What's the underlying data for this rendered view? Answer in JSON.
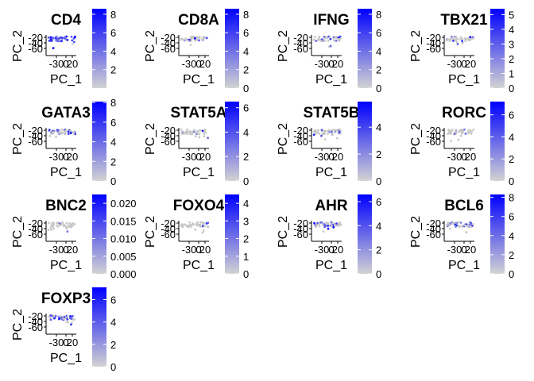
{
  "figure": {
    "low_color": "#d3d3d3",
    "high_color": "#0000ff",
    "point_grey": "#c8c8c8"
  },
  "chart_data": [
    {
      "type": "scatter",
      "title": "CD4",
      "xlabel": "PC_1",
      "ylabel": "PC_2",
      "x_ticks": [
        "-30",
        "0",
        "20"
      ],
      "y_ticks": [
        "-20",
        "-40",
        "-60"
      ],
      "legend_ticks": [
        "2",
        "4",
        "6",
        "8"
      ],
      "legend_range": [
        0,
        8.6
      ],
      "expression_level": 0.85
    },
    {
      "type": "scatter",
      "title": "CD8A",
      "xlabel": "PC_1",
      "ylabel": "PC_2",
      "x_ticks": [
        "-30",
        "0",
        "20"
      ],
      "y_ticks": [
        "-20",
        "-40",
        "-60"
      ],
      "legend_ticks": [
        "0",
        "2",
        "4",
        "6",
        "8"
      ],
      "legend_range": [
        0,
        8.6
      ],
      "expression_level": 0.15
    },
    {
      "type": "scatter",
      "title": "IFNG",
      "xlabel": "PC_1",
      "ylabel": "PC_2",
      "x_ticks": [
        "-30",
        "0",
        "20"
      ],
      "y_ticks": [
        "-20",
        "-40",
        "-60"
      ],
      "legend_ticks": [
        "0",
        "2",
        "4",
        "6",
        "8"
      ],
      "legend_range": [
        0,
        8.6
      ],
      "expression_level": 0.25
    },
    {
      "type": "scatter",
      "title": "TBX21",
      "xlabel": "PC_1",
      "ylabel": "PC_2",
      "x_ticks": [
        "-30",
        "0",
        "20"
      ],
      "y_ticks": [
        "-20",
        "-40",
        "-60"
      ],
      "legend_ticks": [
        "0",
        "1",
        "2",
        "3",
        "4",
        "5"
      ],
      "legend_range": [
        0,
        5.4
      ],
      "expression_level": 0.1
    },
    {
      "type": "scatter",
      "title": "GATA3",
      "xlabel": "PC_1",
      "ylabel": "PC_2",
      "x_ticks": [
        "-30",
        "0",
        "20"
      ],
      "y_ticks": [
        "-20",
        "-40",
        "-60"
      ],
      "legend_ticks": [
        "0",
        "2",
        "4",
        "6",
        "8"
      ],
      "legend_range": [
        0,
        8.1
      ],
      "expression_level": 0.5
    },
    {
      "type": "scatter",
      "title": "STAT5A",
      "xlabel": "PC_1",
      "ylabel": "PC_2",
      "x_ticks": [
        "-30",
        "0",
        "20"
      ],
      "y_ticks": [
        "-20",
        "-40",
        "-60"
      ],
      "legend_ticks": [
        "0",
        "2",
        "4",
        "6"
      ],
      "legend_range": [
        0,
        6.5
      ],
      "expression_level": 0.15
    },
    {
      "type": "scatter",
      "title": "STAT5B",
      "xlabel": "PC_1",
      "ylabel": "PC_2",
      "x_ticks": [
        "-30",
        "0",
        "20"
      ],
      "y_ticks": [
        "-20",
        "-40",
        "-60"
      ],
      "legend_ticks": [
        "0",
        "2",
        "4"
      ],
      "legend_range": [
        0,
        5.9
      ],
      "expression_level": 0.2
    },
    {
      "type": "scatter",
      "title": "RORC",
      "xlabel": "PC_1",
      "ylabel": "PC_2",
      "x_ticks": [
        "-30",
        "0",
        "20"
      ],
      "y_ticks": [
        "-20",
        "-40",
        "-60"
      ],
      "legend_ticks": [
        "0",
        "2",
        "4",
        "6"
      ],
      "legend_range": [
        0,
        7.2
      ],
      "expression_level": 0.1
    },
    {
      "type": "scatter",
      "title": "BNC2",
      "xlabel": "PC_1",
      "ylabel": "PC_2",
      "x_ticks": [
        "-30",
        "0",
        "20"
      ],
      "y_ticks": [
        "-20",
        "-40",
        "-60"
      ],
      "legend_ticks": [
        "0.000",
        "0.005",
        "0.010",
        "0.015",
        "0.020"
      ],
      "legend_range": [
        0,
        0.0225
      ],
      "expression_level": 0.05
    },
    {
      "type": "scatter",
      "title": "FOXO4",
      "xlabel": "PC_1",
      "ylabel": "PC_2",
      "x_ticks": [
        "-30",
        "0",
        "20"
      ],
      "y_ticks": [
        "-20",
        "-40",
        "-60"
      ],
      "legend_ticks": [
        "0",
        "1",
        "2",
        "3",
        "4"
      ],
      "legend_range": [
        0,
        4.5
      ],
      "expression_level": 0.1
    },
    {
      "type": "scatter",
      "title": "AHR",
      "xlabel": "PC_1",
      "ylabel": "PC_2",
      "x_ticks": [
        "-30",
        "0",
        "20"
      ],
      "y_ticks": [
        "-20",
        "-40",
        "-60"
      ],
      "legend_ticks": [
        "0",
        "2",
        "4",
        "6"
      ],
      "legend_range": [
        0,
        6.6
      ],
      "expression_level": 0.35
    },
    {
      "type": "scatter",
      "title": "BCL6",
      "xlabel": "PC_1",
      "ylabel": "PC_2",
      "x_ticks": [
        "-30",
        "0",
        "20"
      ],
      "y_ticks": [
        "-20",
        "-40",
        "-60"
      ],
      "legend_ticks": [
        "0",
        "2",
        "4",
        "6",
        "8"
      ],
      "legend_range": [
        0,
        8.3
      ],
      "expression_level": 0.3
    },
    {
      "type": "scatter",
      "title": "FOXP3",
      "xlabel": "PC_1",
      "ylabel": "PC_2",
      "x_ticks": [
        "-30",
        "0",
        "20"
      ],
      "y_ticks": [
        "-20",
        "-40",
        "-60"
      ],
      "legend_ticks": [
        "0",
        "2",
        "4",
        "6"
      ],
      "legend_range": [
        0,
        7.1
      ],
      "expression_level": 0.6
    }
  ]
}
